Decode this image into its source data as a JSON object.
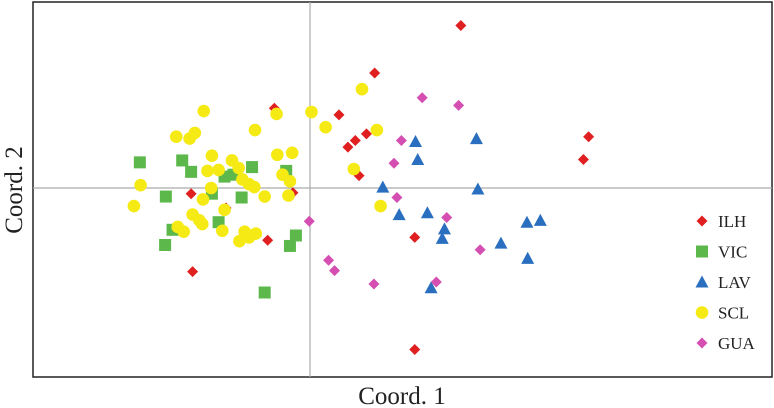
{
  "chart_data": {
    "type": "scatter",
    "title": "",
    "xlabel": "Coord. 1",
    "ylabel": "Coord. 2",
    "xlim": [
      -3.0,
      5.0
    ],
    "ylim": [
      -2.0,
      2.0
    ],
    "reference_lines": {
      "x": 0,
      "y": 0
    },
    "grid": false,
    "legend_position": "right",
    "series": [
      {
        "name": "ILH",
        "marker": "diamond",
        "color": "#e02020",
        "points": [
          [
            2.03,
            1.71
          ],
          [
            0.87,
            1.21
          ],
          [
            0.39,
            0.77
          ],
          [
            0.76,
            0.57
          ],
          [
            0.61,
            0.5
          ],
          [
            0.51,
            0.43
          ],
          [
            0.66,
            0.13
          ],
          [
            -0.48,
            0.84
          ],
          [
            3.68,
            0.3
          ],
          [
            3.75,
            0.54
          ],
          [
            -1.6,
            -0.06
          ],
          [
            -1.13,
            -0.21
          ],
          [
            -0.23,
            -0.05
          ],
          [
            -0.57,
            -0.55
          ],
          [
            1.41,
            -0.52
          ],
          [
            -1.58,
            -0.88
          ],
          [
            1.41,
            -1.7
          ]
        ]
      },
      {
        "name": "VIC",
        "marker": "square",
        "color": "#5cb84a",
        "points": [
          [
            -2.29,
            0.27
          ],
          [
            -1.72,
            0.29
          ],
          [
            -1.6,
            0.17
          ],
          [
            -1.15,
            0.12
          ],
          [
            -1.03,
            0.14
          ],
          [
            -0.78,
            0.22
          ],
          [
            -0.32,
            0.18
          ],
          [
            -1.94,
            -0.09
          ],
          [
            -1.32,
            -0.06
          ],
          [
            -0.92,
            -0.1
          ],
          [
            -1.85,
            -0.44
          ],
          [
            -1.23,
            -0.36
          ],
          [
            -1.95,
            -0.6
          ],
          [
            -0.27,
            -0.61
          ],
          [
            -0.19,
            -0.5
          ],
          [
            -0.61,
            -1.1
          ]
        ]
      },
      {
        "name": "LAV",
        "marker": "triangle",
        "color": "#2a6fbf",
        "points": [
          [
            1.42,
            0.49
          ],
          [
            1.45,
            0.3
          ],
          [
            2.24,
            0.52
          ],
          [
            0.98,
            0.01
          ],
          [
            2.26,
            -0.01
          ],
          [
            1.2,
            -0.28
          ],
          [
            1.58,
            -0.26
          ],
          [
            1.81,
            -0.43
          ],
          [
            1.78,
            -0.53
          ],
          [
            2.57,
            -0.58
          ],
          [
            2.92,
            -0.36
          ],
          [
            3.1,
            -0.34
          ],
          [
            2.93,
            -0.74
          ],
          [
            1.63,
            -1.05
          ]
        ]
      },
      {
        "name": "SCL",
        "marker": "circle",
        "color": "#f5ea14",
        "points": [
          [
            -1.43,
            0.81
          ],
          [
            -1.8,
            0.54
          ],
          [
            -1.62,
            0.52
          ],
          [
            -1.55,
            0.58
          ],
          [
            -0.74,
            0.61
          ],
          [
            -0.45,
            0.78
          ],
          [
            0.02,
            0.8
          ],
          [
            0.21,
            0.64
          ],
          [
            0.7,
            1.04
          ],
          [
            0.9,
            0.61
          ],
          [
            -1.32,
            0.34
          ],
          [
            -1.05,
            0.29
          ],
          [
            -0.44,
            0.35
          ],
          [
            -0.24,
            0.37
          ],
          [
            -1.38,
            0.18
          ],
          [
            -1.23,
            0.19
          ],
          [
            -0.96,
            0.21
          ],
          [
            -0.91,
            0.09
          ],
          [
            -0.82,
            0.04
          ],
          [
            -0.75,
            0.01
          ],
          [
            -0.37,
            0.14
          ],
          [
            -0.27,
            0.07
          ],
          [
            0.59,
            0.2
          ],
          [
            -2.28,
            0.03
          ],
          [
            -1.33,
            0.0
          ],
          [
            -0.61,
            -0.09
          ],
          [
            -0.29,
            -0.08
          ],
          [
            -2.37,
            -0.19
          ],
          [
            -1.44,
            -0.12
          ],
          [
            -1.15,
            -0.23
          ],
          [
            -1.58,
            -0.28
          ],
          [
            -1.49,
            -0.34
          ],
          [
            -1.45,
            -0.38
          ],
          [
            -1.7,
            -0.46
          ],
          [
            -1.78,
            -0.41
          ],
          [
            -1.18,
            -0.45
          ],
          [
            -0.88,
            -0.46
          ],
          [
            -0.82,
            -0.52
          ],
          [
            -0.95,
            -0.56
          ],
          [
            -0.73,
            -0.48
          ],
          [
            0.95,
            -0.19
          ]
        ]
      },
      {
        "name": "GUA",
        "marker": "diamond",
        "color": "#d54fb2",
        "points": [
          [
            1.51,
            0.95
          ],
          [
            2.0,
            0.87
          ],
          [
            1.23,
            0.5
          ],
          [
            1.13,
            0.26
          ],
          [
            1.17,
            -0.1
          ],
          [
            1.84,
            -0.31
          ],
          [
            -0.01,
            -0.35
          ],
          [
            2.29,
            -0.65
          ],
          [
            0.25,
            -0.76
          ],
          [
            0.33,
            -0.87
          ],
          [
            0.86,
            -1.01
          ],
          [
            1.7,
            -0.99
          ]
        ]
      }
    ]
  }
}
